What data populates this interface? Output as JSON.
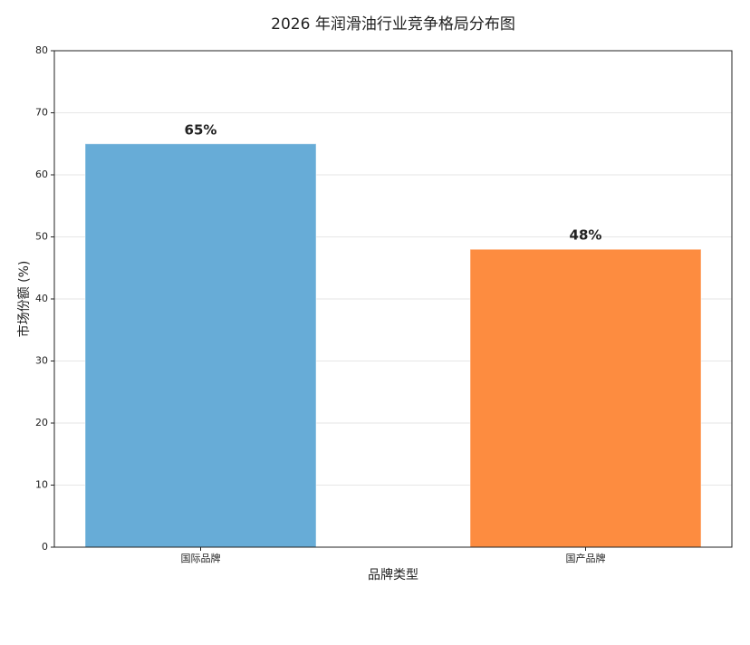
{
  "chart_data": {
    "type": "bar",
    "title": "2026 年润滑油行业竞争格局分布图",
    "x_label": "品牌类型",
    "y_label": "市场份额 (%)",
    "categories": [
      "国际品牌",
      "国产品牌"
    ],
    "values": [
      65,
      48
    ],
    "value_labels": [
      "65%",
      "48%"
    ],
    "colors": [
      "#67acd7",
      "#fd8c40"
    ],
    "ylim": [
      0,
      80
    ],
    "yticks": [
      0,
      10,
      20,
      30,
      40,
      50,
      60,
      70,
      80
    ],
    "grid": true
  }
}
